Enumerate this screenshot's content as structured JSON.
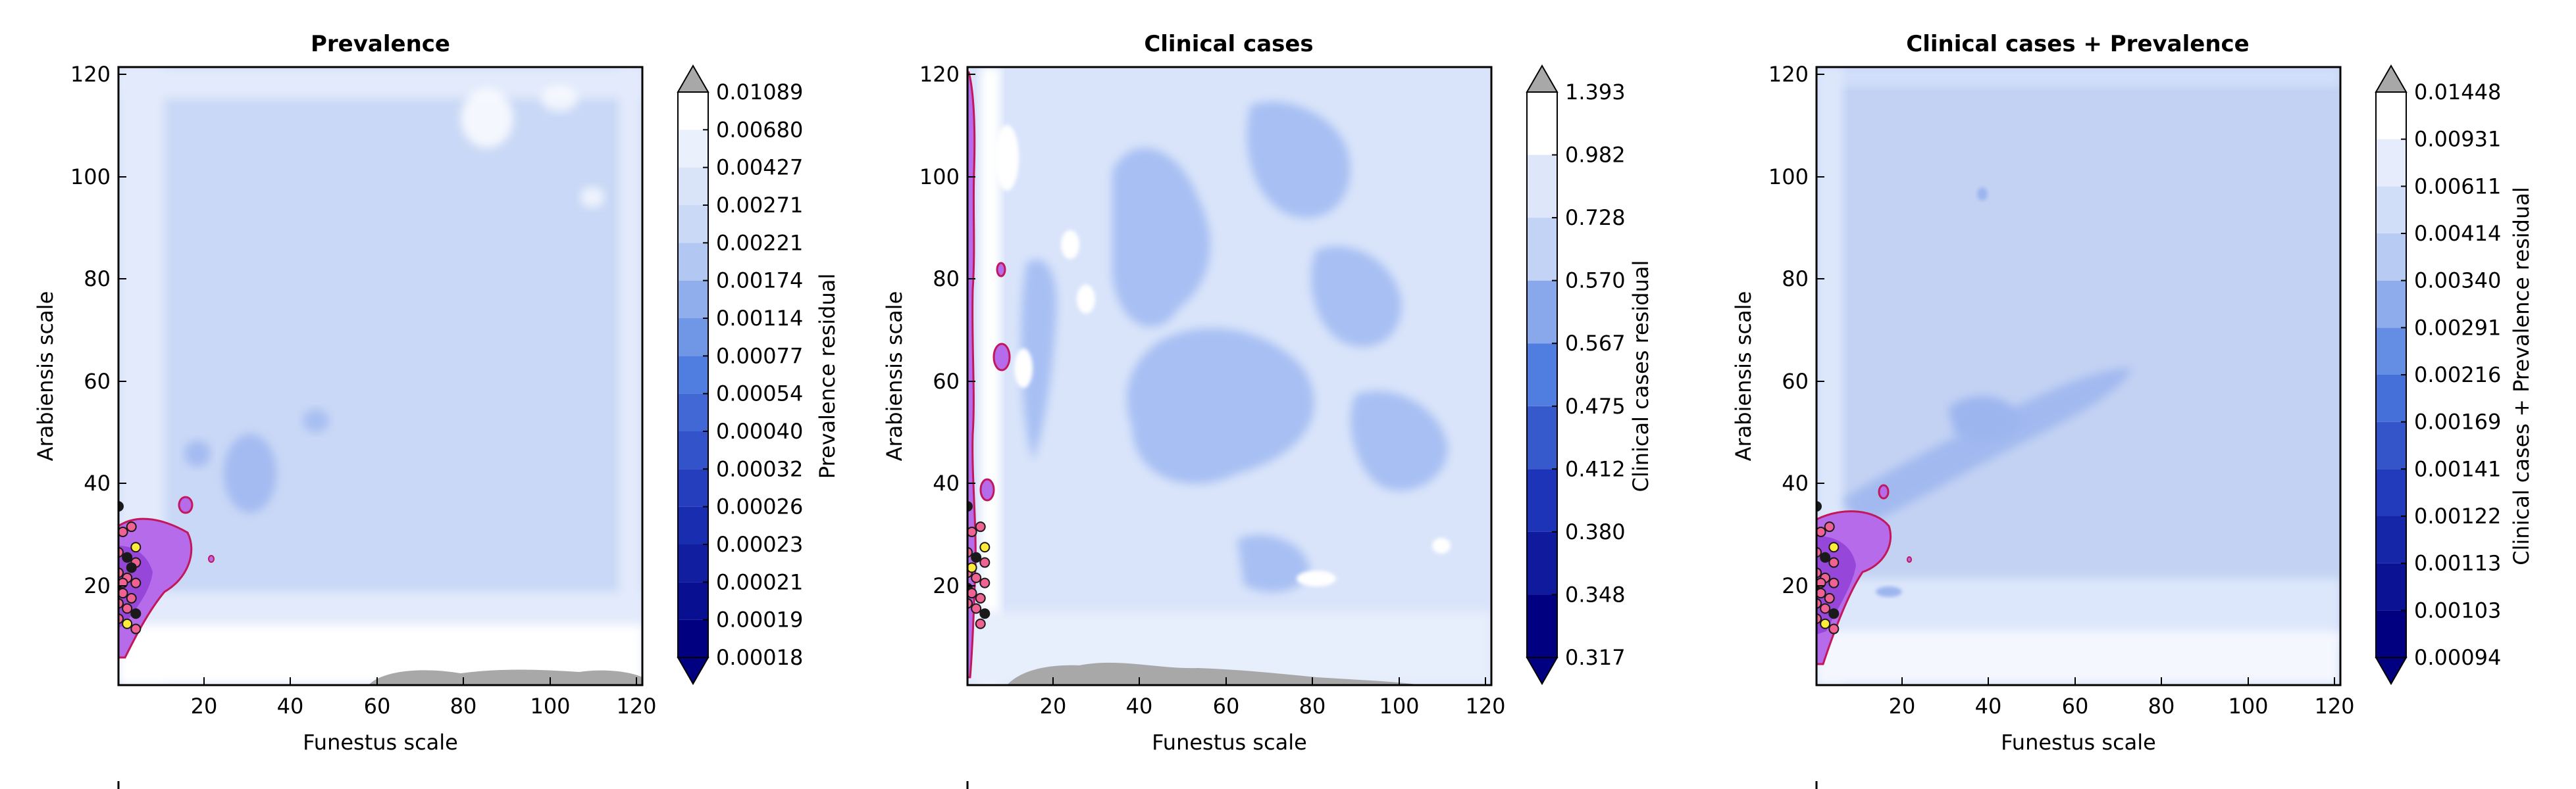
{
  "chart_data": [
    {
      "type": "heatmap",
      "title": "Prevalence",
      "xlabel": "Funestus scale",
      "ylabel": "Arabiensis scale",
      "xlim": [
        1,
        122
      ],
      "ylim": [
        1,
        122
      ],
      "x_ticks": [
        "20",
        "40",
        "60",
        "80",
        "100",
        "120"
      ],
      "y_ticks": [
        "20",
        "40",
        "60",
        "80",
        "100",
        "120"
      ],
      "colorbar_label": "Prevalence residual",
      "colorbar_levels": [
        "0.00018",
        "0.00019",
        "0.00021",
        "0.00023",
        "0.00026",
        "0.00032",
        "0.00040",
        "0.00054",
        "0.00077",
        "0.00114",
        "0.00174",
        "0.00221",
        "0.00271",
        "0.00427",
        "0.00680",
        "0.01089"
      ],
      "grid": false,
      "points": [
        [
          1,
          36
        ],
        [
          2,
          31
        ],
        [
          4,
          32
        ],
        [
          5,
          28
        ],
        [
          1,
          27
        ],
        [
          3,
          26
        ],
        [
          5,
          25
        ],
        [
          1,
          23
        ],
        [
          3,
          22
        ],
        [
          5,
          21
        ],
        [
          1,
          20
        ],
        [
          2,
          19
        ],
        [
          4,
          18
        ],
        [
          1,
          17
        ],
        [
          3,
          16
        ],
        [
          5,
          15
        ],
        [
          1,
          14
        ],
        [
          3,
          13
        ],
        [
          5,
          12
        ],
        [
          2,
          21
        ],
        [
          4,
          24
        ]
      ]
    },
    {
      "type": "heatmap",
      "title": "Clinical cases",
      "xlabel": "Funestus scale",
      "ylabel": "Arabiensis scale",
      "xlim": [
        1,
        122
      ],
      "ylim": [
        1,
        122
      ],
      "x_ticks": [
        "20",
        "40",
        "60",
        "80",
        "100",
        "120"
      ],
      "y_ticks": [
        "20",
        "40",
        "60",
        "80",
        "100",
        "120"
      ],
      "colorbar_label": "Clinical cases residual",
      "colorbar_levels": [
        "0.317",
        "0.348",
        "0.380",
        "0.412",
        "0.475",
        "0.567",
        "0.570",
        "0.728",
        "0.982",
        "1.393"
      ],
      "grid": false,
      "points": [
        [
          1,
          36
        ],
        [
          2,
          31
        ],
        [
          4,
          32
        ],
        [
          5,
          28
        ],
        [
          1,
          27
        ],
        [
          3,
          26
        ],
        [
          5,
          25
        ],
        [
          1,
          23
        ],
        [
          3,
          22
        ],
        [
          5,
          21
        ],
        [
          1,
          20
        ],
        [
          2,
          19
        ],
        [
          4,
          18
        ],
        [
          1,
          17
        ],
        [
          3,
          16
        ],
        [
          5,
          15
        ],
        [
          4,
          13
        ],
        [
          2,
          24
        ]
      ]
    },
    {
      "type": "heatmap",
      "title": "Clinical cases + Prevalence",
      "xlabel": "Funestus scale",
      "ylabel": "Arabiensis scale",
      "xlim": [
        1,
        122
      ],
      "ylim": [
        1,
        122
      ],
      "x_ticks": [
        "20",
        "40",
        "60",
        "80",
        "100",
        "120"
      ],
      "y_ticks": [
        "20",
        "40",
        "60",
        "80",
        "100",
        "120"
      ],
      "colorbar_label": "Clinical cases + Prevalence residual",
      "colorbar_levels": [
        "0.00094",
        "0.00103",
        "0.00113",
        "0.00122",
        "0.00141",
        "0.00169",
        "0.00216",
        "0.00291",
        "0.00340",
        "0.00414",
        "0.00611",
        "0.00931",
        "0.01448"
      ],
      "grid": false,
      "points": [
        [
          1,
          36
        ],
        [
          2,
          31
        ],
        [
          4,
          32
        ],
        [
          5,
          28
        ],
        [
          1,
          27
        ],
        [
          3,
          26
        ],
        [
          5,
          25
        ],
        [
          1,
          23
        ],
        [
          3,
          22
        ],
        [
          5,
          21
        ],
        [
          1,
          20
        ],
        [
          2,
          19
        ],
        [
          4,
          18
        ],
        [
          1,
          17
        ],
        [
          3,
          16
        ],
        [
          5,
          15
        ],
        [
          1,
          14
        ],
        [
          3,
          13
        ],
        [
          5,
          12
        ],
        [
          2,
          21
        ]
      ]
    }
  ],
  "colors": {
    "band_deep": "#0b1e8a",
    "band_mid": "#5c84e6",
    "band_light": "#c9d8f6",
    "band_pale": "#e2eafb",
    "band_white": "#ffffff",
    "over": "#a8a8a8",
    "region_fill": "#b56bea",
    "region_edge": "#c2185b",
    "point_fill": "#f06292",
    "point_edge": "#1a1a1a"
  }
}
